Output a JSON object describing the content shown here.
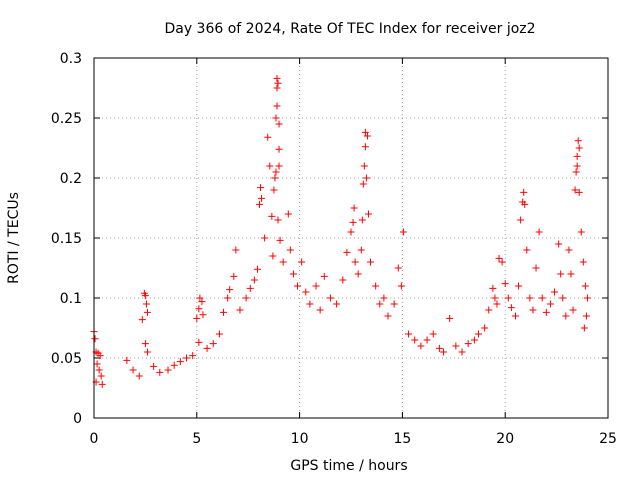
{
  "chart_data": {
    "type": "scatter",
    "title": "Day 366 of 2024, Rate Of TEC Index for receiver joz2",
    "xlabel": "GPS time / hours",
    "ylabel": "ROTI / TECUs",
    "xlim": [
      0,
      25
    ],
    "ylim": [
      0,
      0.3
    ],
    "xticks": [
      0,
      5,
      10,
      15,
      20,
      25
    ],
    "xtick_labels": [
      "0",
      "5",
      "10",
      "15",
      "20",
      "25"
    ],
    "yticks": [
      0,
      0.05,
      0.1,
      0.15,
      0.2,
      0.25,
      0.3
    ],
    "ytick_labels": [
      "0",
      "0.05",
      "0.1",
      "0.15",
      "0.2",
      "0.25",
      "0.3"
    ],
    "grid": true,
    "marker": "+",
    "series": [
      {
        "name": "ROTI",
        "color": "#ff0000",
        "points": [
          [
            0.0,
            0.072
          ],
          [
            0.05,
            0.066
          ],
          [
            0.1,
            0.055
          ],
          [
            0.2,
            0.054
          ],
          [
            0.3,
            0.052
          ],
          [
            0.15,
            0.045
          ],
          [
            0.25,
            0.04
          ],
          [
            0.35,
            0.035
          ],
          [
            0.1,
            0.03
          ],
          [
            0.4,
            0.028
          ],
          [
            1.6,
            0.048
          ],
          [
            1.9,
            0.04
          ],
          [
            2.2,
            0.035
          ],
          [
            2.35,
            0.082
          ],
          [
            2.45,
            0.104
          ],
          [
            2.5,
            0.102
          ],
          [
            2.55,
            0.095
          ],
          [
            2.6,
            0.088
          ],
          [
            2.5,
            0.062
          ],
          [
            2.6,
            0.055
          ],
          [
            2.9,
            0.043
          ],
          [
            3.2,
            0.038
          ],
          [
            3.6,
            0.04
          ],
          [
            3.9,
            0.044
          ],
          [
            4.2,
            0.047
          ],
          [
            4.5,
            0.05
          ],
          [
            4.8,
            0.052
          ],
          [
            5.0,
            0.083
          ],
          [
            5.1,
            0.091
          ],
          [
            5.15,
            0.1
          ],
          [
            5.25,
            0.097
          ],
          [
            5.3,
            0.086
          ],
          [
            5.1,
            0.063
          ],
          [
            5.5,
            0.058
          ],
          [
            5.8,
            0.062
          ],
          [
            6.1,
            0.07
          ],
          [
            6.3,
            0.088
          ],
          [
            6.5,
            0.1
          ],
          [
            6.6,
            0.107
          ],
          [
            6.8,
            0.118
          ],
          [
            6.9,
            0.14
          ],
          [
            7.1,
            0.09
          ],
          [
            7.4,
            0.1
          ],
          [
            7.6,
            0.108
          ],
          [
            7.8,
            0.115
          ],
          [
            7.95,
            0.124
          ],
          [
            8.05,
            0.178
          ],
          [
            8.1,
            0.192
          ],
          [
            8.15,
            0.183
          ],
          [
            8.3,
            0.15
          ],
          [
            8.45,
            0.234
          ],
          [
            8.55,
            0.21
          ],
          [
            8.65,
            0.168
          ],
          [
            8.7,
            0.135
          ],
          [
            8.75,
            0.19
          ],
          [
            8.8,
            0.2
          ],
          [
            8.85,
            0.205
          ],
          [
            8.85,
            0.25
          ],
          [
            8.9,
            0.26
          ],
          [
            8.9,
            0.275
          ],
          [
            8.9,
            0.283
          ],
          [
            8.95,
            0.279
          ],
          [
            9.0,
            0.245
          ],
          [
            9.0,
            0.224
          ],
          [
            9.0,
            0.21
          ],
          [
            8.95,
            0.165
          ],
          [
            9.05,
            0.148
          ],
          [
            9.2,
            0.13
          ],
          [
            9.45,
            0.17
          ],
          [
            9.55,
            0.14
          ],
          [
            9.7,
            0.12
          ],
          [
            9.9,
            0.11
          ],
          [
            10.1,
            0.13
          ],
          [
            10.3,
            0.105
          ],
          [
            10.5,
            0.095
          ],
          [
            10.8,
            0.11
          ],
          [
            11.0,
            0.09
          ],
          [
            11.2,
            0.118
          ],
          [
            11.5,
            0.1
          ],
          [
            11.8,
            0.095
          ],
          [
            12.1,
            0.115
          ],
          [
            12.3,
            0.138
          ],
          [
            12.5,
            0.155
          ],
          [
            12.6,
            0.163
          ],
          [
            12.65,
            0.175
          ],
          [
            12.7,
            0.13
          ],
          [
            12.85,
            0.12
          ],
          [
            13.0,
            0.14
          ],
          [
            13.05,
            0.165
          ],
          [
            13.1,
            0.195
          ],
          [
            13.15,
            0.21
          ],
          [
            13.2,
            0.226
          ],
          [
            13.2,
            0.238
          ],
          [
            13.3,
            0.235
          ],
          [
            13.25,
            0.2
          ],
          [
            13.35,
            0.17
          ],
          [
            13.45,
            0.13
          ],
          [
            13.7,
            0.11
          ],
          [
            13.9,
            0.095
          ],
          [
            14.1,
            0.1
          ],
          [
            14.3,
            0.085
          ],
          [
            14.6,
            0.095
          ],
          [
            14.8,
            0.125
          ],
          [
            14.95,
            0.11
          ],
          [
            15.05,
            0.155
          ],
          [
            15.3,
            0.07
          ],
          [
            15.6,
            0.065
          ],
          [
            15.9,
            0.06
          ],
          [
            16.2,
            0.065
          ],
          [
            16.5,
            0.07
          ],
          [
            16.8,
            0.058
          ],
          [
            17.0,
            0.055
          ],
          [
            17.3,
            0.083
          ],
          [
            17.6,
            0.06
          ],
          [
            17.9,
            0.055
          ],
          [
            18.2,
            0.062
          ],
          [
            18.5,
            0.065
          ],
          [
            18.7,
            0.07
          ],
          [
            19.0,
            0.075
          ],
          [
            19.2,
            0.09
          ],
          [
            19.4,
            0.108
          ],
          [
            19.5,
            0.1
          ],
          [
            19.6,
            0.095
          ],
          [
            19.7,
            0.133
          ],
          [
            19.85,
            0.13
          ],
          [
            20.0,
            0.112
          ],
          [
            20.15,
            0.1
          ],
          [
            20.3,
            0.092
          ],
          [
            20.5,
            0.085
          ],
          [
            20.65,
            0.11
          ],
          [
            20.75,
            0.165
          ],
          [
            20.85,
            0.18
          ],
          [
            20.9,
            0.188
          ],
          [
            20.95,
            0.178
          ],
          [
            21.05,
            0.14
          ],
          [
            21.2,
            0.1
          ],
          [
            21.35,
            0.09
          ],
          [
            21.5,
            0.125
          ],
          [
            21.65,
            0.155
          ],
          [
            21.8,
            0.1
          ],
          [
            22.0,
            0.088
          ],
          [
            22.2,
            0.095
          ],
          [
            22.4,
            0.105
          ],
          [
            22.6,
            0.145
          ],
          [
            22.7,
            0.12
          ],
          [
            22.8,
            0.1
          ],
          [
            22.95,
            0.085
          ],
          [
            23.1,
            0.14
          ],
          [
            23.2,
            0.12
          ],
          [
            23.3,
            0.09
          ],
          [
            23.4,
            0.19
          ],
          [
            23.45,
            0.205
          ],
          [
            23.5,
            0.21
          ],
          [
            23.5,
            0.218
          ],
          [
            23.55,
            0.231
          ],
          [
            23.6,
            0.225
          ],
          [
            23.6,
            0.188
          ],
          [
            23.7,
            0.155
          ],
          [
            23.8,
            0.13
          ],
          [
            23.9,
            0.11
          ],
          [
            24.0,
            0.1
          ],
          [
            23.95,
            0.085
          ],
          [
            23.85,
            0.075
          ]
        ]
      }
    ]
  }
}
